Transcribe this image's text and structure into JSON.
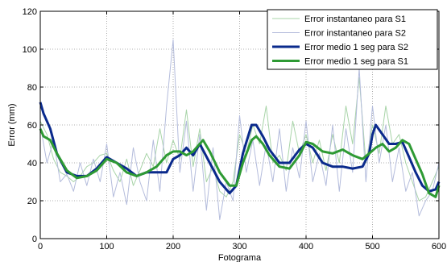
{
  "chart_data": {
    "type": "line",
    "xlabel": "Fotograma",
    "ylabel": "Error (mm)",
    "xlim": [
      0,
      600
    ],
    "ylim": [
      0,
      120
    ],
    "xticks": [
      0,
      100,
      200,
      300,
      400,
      500,
      600
    ],
    "yticks": [
      0,
      20,
      40,
      60,
      80,
      100,
      120
    ],
    "grid": true,
    "grid_style": "dotted",
    "legend_position": "top-right",
    "series": [
      {
        "name": "Error instantaneo para S1",
        "color": "#a8d4a8",
        "style": "thin",
        "x": [
          0,
          10,
          20,
          30,
          40,
          50,
          60,
          70,
          80,
          90,
          100,
          110,
          120,
          130,
          140,
          150,
          160,
          170,
          180,
          190,
          200,
          210,
          220,
          230,
          240,
          250,
          260,
          270,
          280,
          290,
          300,
          310,
          320,
          330,
          340,
          350,
          360,
          370,
          380,
          390,
          400,
          410,
          420,
          430,
          440,
          450,
          460,
          470,
          480,
          490,
          500,
          510,
          520,
          530,
          540,
          550,
          560,
          570,
          580,
          590,
          600
        ],
        "values": [
          62,
          55,
          42,
          35,
          33,
          30,
          33,
          38,
          40,
          44,
          45,
          36,
          30,
          42,
          28,
          36,
          45,
          38,
          58,
          40,
          52,
          42,
          68,
          38,
          58,
          30,
          38,
          25,
          22,
          30,
          55,
          45,
          60,
          50,
          70,
          40,
          44,
          36,
          62,
          45,
          55,
          40,
          52,
          36,
          55,
          40,
          70,
          50,
          85,
          40,
          60,
          45,
          70,
          50,
          55,
          40,
          30,
          20,
          22,
          30,
          38
        ]
      },
      {
        "name": "Error instantaneo para S2",
        "color": "#b4bcdc",
        "style": "thin",
        "x": [
          0,
          10,
          20,
          30,
          40,
          50,
          60,
          70,
          80,
          90,
          100,
          110,
          120,
          130,
          140,
          150,
          160,
          170,
          180,
          190,
          200,
          210,
          220,
          230,
          240,
          250,
          260,
          270,
          280,
          290,
          300,
          310,
          320,
          330,
          340,
          350,
          360,
          370,
          380,
          390,
          400,
          410,
          420,
          430,
          440,
          450,
          460,
          470,
          480,
          490,
          500,
          510,
          520,
          530,
          540,
          550,
          560,
          570,
          580,
          590,
          600
        ],
        "values": [
          60,
          40,
          52,
          30,
          34,
          25,
          40,
          28,
          42,
          30,
          50,
          22,
          35,
          18,
          48,
          30,
          20,
          52,
          25,
          70,
          105,
          35,
          62,
          25,
          55,
          15,
          48,
          10,
          30,
          20,
          65,
          35,
          52,
          28,
          50,
          30,
          58,
          25,
          48,
          32,
          62,
          30,
          45,
          28,
          60,
          25,
          58,
          35,
          90,
          30,
          70,
          40,
          60,
          30,
          48,
          25,
          35,
          12,
          20,
          25,
          40
        ]
      },
      {
        "name": "Error medio 1 seg para S2",
        "color": "#0a2a8c",
        "style": "thick",
        "x": [
          0,
          5,
          15,
          25,
          40,
          55,
          70,
          85,
          100,
          115,
          130,
          145,
          160,
          175,
          190,
          200,
          210,
          220,
          230,
          240,
          255,
          270,
          285,
          295,
          305,
          318,
          325,
          335,
          345,
          360,
          375,
          390,
          400,
          410,
          425,
          440,
          455,
          470,
          485,
          495,
          500,
          505,
          515,
          525,
          535,
          545,
          555,
          565,
          575,
          585,
          595,
          600
        ],
        "values": [
          72,
          66,
          58,
          45,
          35,
          33,
          33,
          37,
          43,
          40,
          37,
          33,
          35,
          35,
          35,
          42,
          44,
          48,
          44,
          50,
          40,
          30,
          24,
          28,
          45,
          60,
          60,
          54,
          47,
          40,
          40,
          47,
          50,
          48,
          40,
          38,
          38,
          37,
          38,
          45,
          55,
          60,
          55,
          50,
          50,
          51,
          43,
          35,
          28,
          25,
          26,
          30
        ]
      },
      {
        "name": "Error medio 1 seg para S1",
        "color": "#2e9a34",
        "style": "thick",
        "x": [
          0,
          5,
          15,
          25,
          40,
          55,
          70,
          85,
          100,
          115,
          130,
          145,
          160,
          175,
          190,
          200,
          210,
          220,
          230,
          245,
          255,
          270,
          285,
          295,
          305,
          318,
          325,
          335,
          345,
          360,
          375,
          390,
          400,
          410,
          425,
          440,
          455,
          470,
          485,
          495,
          505,
          515,
          525,
          535,
          545,
          555,
          565,
          575,
          585,
          595,
          600
        ],
        "values": [
          58,
          54,
          52,
          45,
          36,
          32,
          33,
          36,
          42,
          40,
          35,
          33,
          35,
          38,
          44,
          46,
          46,
          44,
          46,
          52,
          46,
          35,
          28,
          28,
          40,
          52,
          54,
          50,
          44,
          38,
          37,
          44,
          51,
          50,
          46,
          45,
          47,
          44,
          42,
          45,
          48,
          50,
          46,
          48,
          52,
          50,
          42,
          34,
          24,
          22,
          28
        ]
      }
    ]
  }
}
